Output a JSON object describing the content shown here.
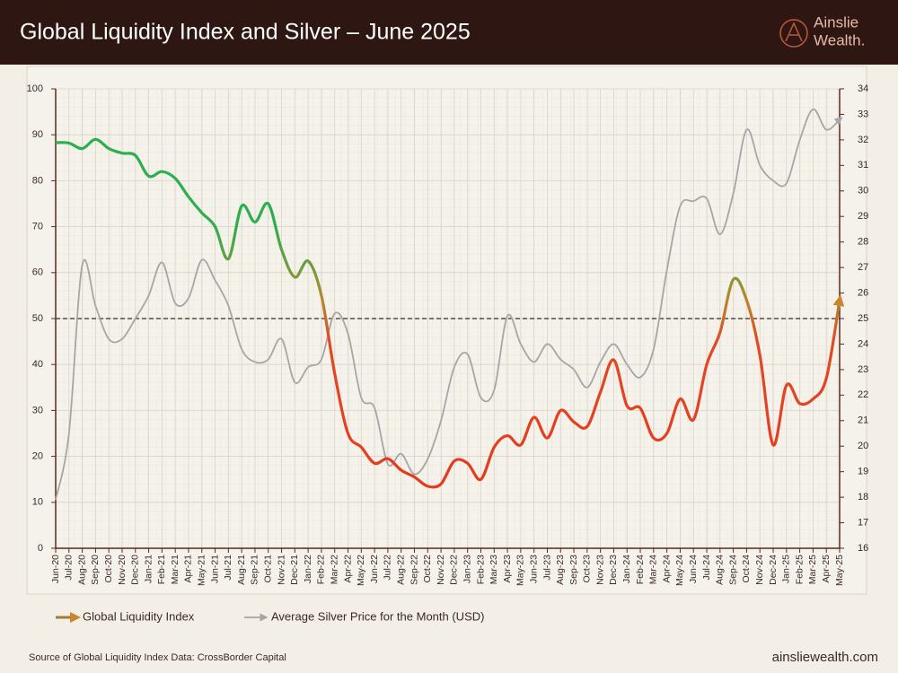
{
  "header": {
    "title": "Global Liquidity Index and Silver – June 2025",
    "brand_top": "Ainslie",
    "brand_bottom": "Wealth."
  },
  "footer": {
    "source": "Source of Global Liquidity Index Data: CrossBorder Capital",
    "website": "ainsliewealth.com"
  },
  "chart_data": {
    "type": "line",
    "categories": [
      "Jun-20",
      "Jul-20",
      "Aug-20",
      "Sep-20",
      "Oct-20",
      "Nov-20",
      "Dec-20",
      "Jan-21",
      "Feb-21",
      "Mar-21",
      "Apr-21",
      "May-21",
      "Jun-21",
      "Jul-21",
      "Aug-21",
      "Sep-21",
      "Oct-21",
      "Nov-21",
      "Dec-21",
      "Jan-22",
      "Feb-22",
      "Mar-22",
      "Apr-22",
      "May-22",
      "Jun-22",
      "Jul-22",
      "Aug-22",
      "Sep-22",
      "Oct-22",
      "Nov-22",
      "Dec-22",
      "Jan-23",
      "Feb-23",
      "Mar-23",
      "Apr-23",
      "May-23",
      "Jun-23",
      "Jul-23",
      "Aug-23",
      "Sep-23",
      "Oct-23",
      "Nov-23",
      "Dec-23",
      "Jan-24",
      "Feb-24",
      "Mar-24",
      "Apr-24",
      "May-24",
      "Jun-24",
      "Jul-24",
      "Aug-24",
      "Sep-24",
      "Oct-24",
      "Nov-24",
      "Dec-24",
      "Jan-25",
      "Feb-25",
      "Mar-25",
      "Apr-25",
      "May-25"
    ],
    "series": [
      {
        "name": "Global Liquidity Index",
        "color": "#a8773a",
        "axis": "y",
        "values": [
          88.3,
          88.2,
          87,
          89,
          87,
          86,
          85.5,
          81,
          82,
          80.5,
          76.5,
          73,
          70,
          63,
          74.5,
          71,
          75,
          65,
          59,
          62.5,
          55,
          38,
          25,
          22,
          18.5,
          19.5,
          17,
          15.5,
          13.5,
          14,
          19,
          18.5,
          15,
          22,
          24.5,
          22.5,
          28.5,
          24,
          30,
          27.5,
          26.5,
          34,
          41,
          31,
          30.5,
          24,
          25,
          32.5,
          28,
          40,
          47,
          58.5,
          54,
          42,
          22.5,
          35.5,
          31.5,
          32.5,
          37,
          54
        ]
      },
      {
        "name": "Average Silver Price for the Month (USD)",
        "color": "#a6a6a6",
        "axis": "y2",
        "values": [
          17.9,
          20.5,
          27.1,
          25.5,
          24.2,
          24.2,
          25,
          25.9,
          27.2,
          25.6,
          25.8,
          27.3,
          26.5,
          25.5,
          23.8,
          23.3,
          23.4,
          24.2,
          22.5,
          23.1,
          23.4,
          25.2,
          24.4,
          21.9,
          21.5,
          19.3,
          19.7,
          18.9,
          19.5,
          21,
          23.1,
          23.6,
          21.9,
          22.2,
          25.1,
          24,
          23.3,
          24,
          23.4,
          23,
          22.3,
          23.3,
          24,
          23.2,
          22.7,
          23.8,
          26.9,
          29.4,
          29.6,
          29.7,
          28.3,
          29.9,
          32.4,
          31,
          30.4,
          30.3,
          32,
          33.2,
          32.4,
          32.8
        ]
      }
    ],
    "ylim": [
      0,
      100
    ],
    "yticks": [
      0,
      10,
      20,
      30,
      40,
      50,
      60,
      70,
      80,
      90,
      100
    ],
    "y2lim": [
      16,
      34
    ],
    "y2ticks": [
      16,
      17,
      18,
      19,
      20,
      21,
      22,
      23,
      24,
      25,
      26,
      27,
      28,
      29,
      30,
      31,
      32,
      33,
      34
    ],
    "reference_line": 50,
    "grid": true
  }
}
